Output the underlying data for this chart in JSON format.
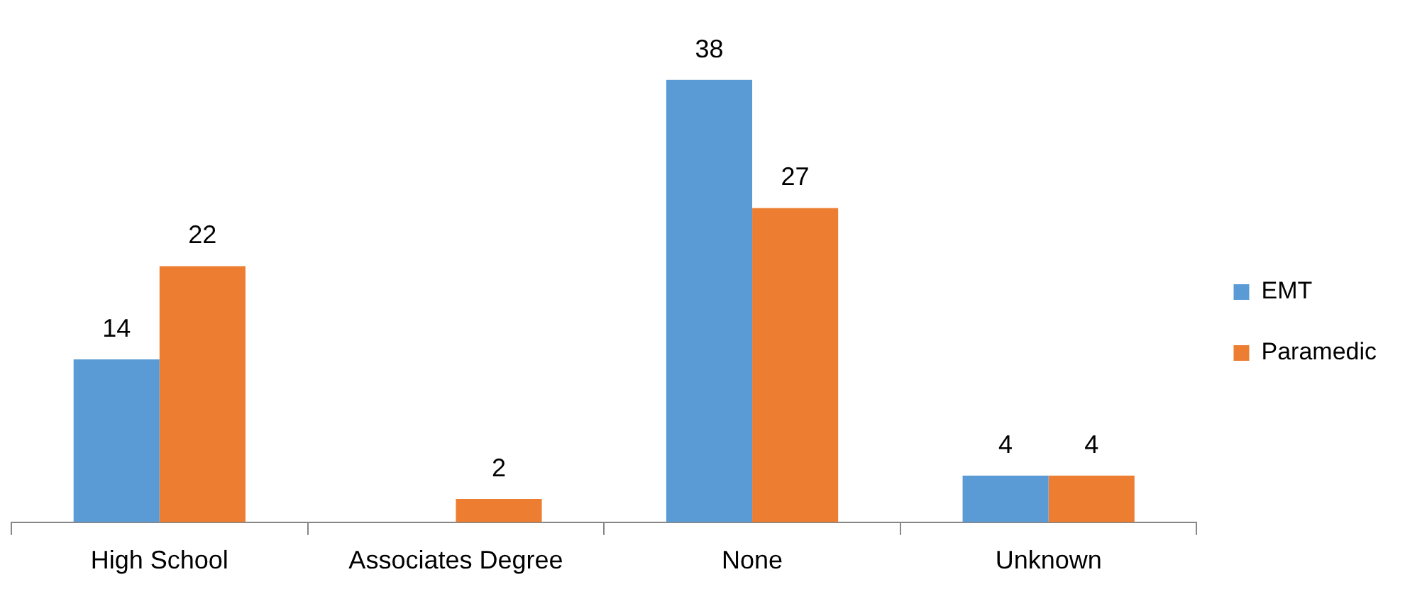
{
  "chart_data": {
    "type": "bar",
    "categories": [
      "High School",
      "Associates Degree",
      "None",
      "Unknown"
    ],
    "series": [
      {
        "name": "EMT",
        "color": "#5b9bd5",
        "values": [
          14,
          null,
          38,
          4
        ]
      },
      {
        "name": "Paramedic",
        "color": "#ed7d31",
        "values": [
          22,
          2,
          27,
          4
        ]
      }
    ],
    "data_labels": true,
    "legend": "right",
    "grid": false,
    "tick_labels": "x"
  }
}
